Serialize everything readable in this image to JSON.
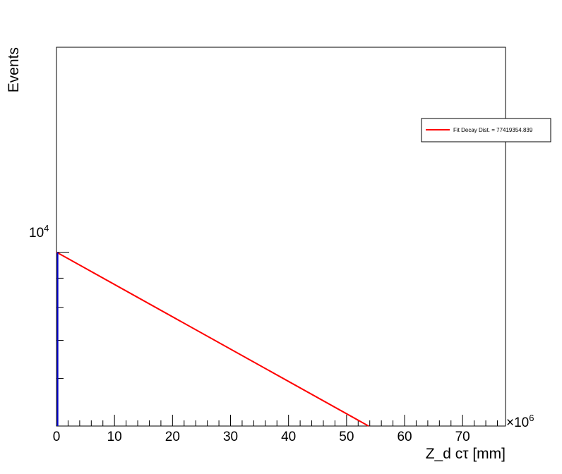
{
  "chart_data": {
    "type": "line",
    "xlabel": "Z_d cτ [mm]",
    "ylabel": "Events",
    "x_multiplier_label": "×10",
    "x_multiplier_exponent": "6",
    "x_scale": "linear",
    "y_scale": "log",
    "xlim": [
      0,
      77.4
    ],
    "ylim": [
      4950,
      22900
    ],
    "x_ticks": [
      0,
      10,
      20,
      30,
      40,
      50,
      60,
      70
    ],
    "x_tick_labels": [
      "0",
      "10",
      "20",
      "30",
      "40",
      "50",
      "60",
      "70"
    ],
    "y_tick_label_base": "10",
    "y_tick_label_exponent": "4",
    "y_major_tick": 10000,
    "y_minor_ticks": [
      6000,
      7000,
      8000,
      9000
    ],
    "grid": false,
    "legend": {
      "position": "top-right",
      "entries": [
        {
          "label": "Fit Decay Dist. = 77419354.839",
          "color": "#ff0000"
        }
      ]
    },
    "series": [
      {
        "name": "Fit Decay Dist. = 77419354.839",
        "color": "#ff0000",
        "style": "fit-line",
        "x": [
          0,
          53.8
        ],
        "y": [
          10000,
          4950
        ]
      },
      {
        "color": "#0000cc",
        "style": "histogram-bar",
        "x": [
          0.2
        ],
        "y": [
          10000
        ]
      }
    ]
  }
}
